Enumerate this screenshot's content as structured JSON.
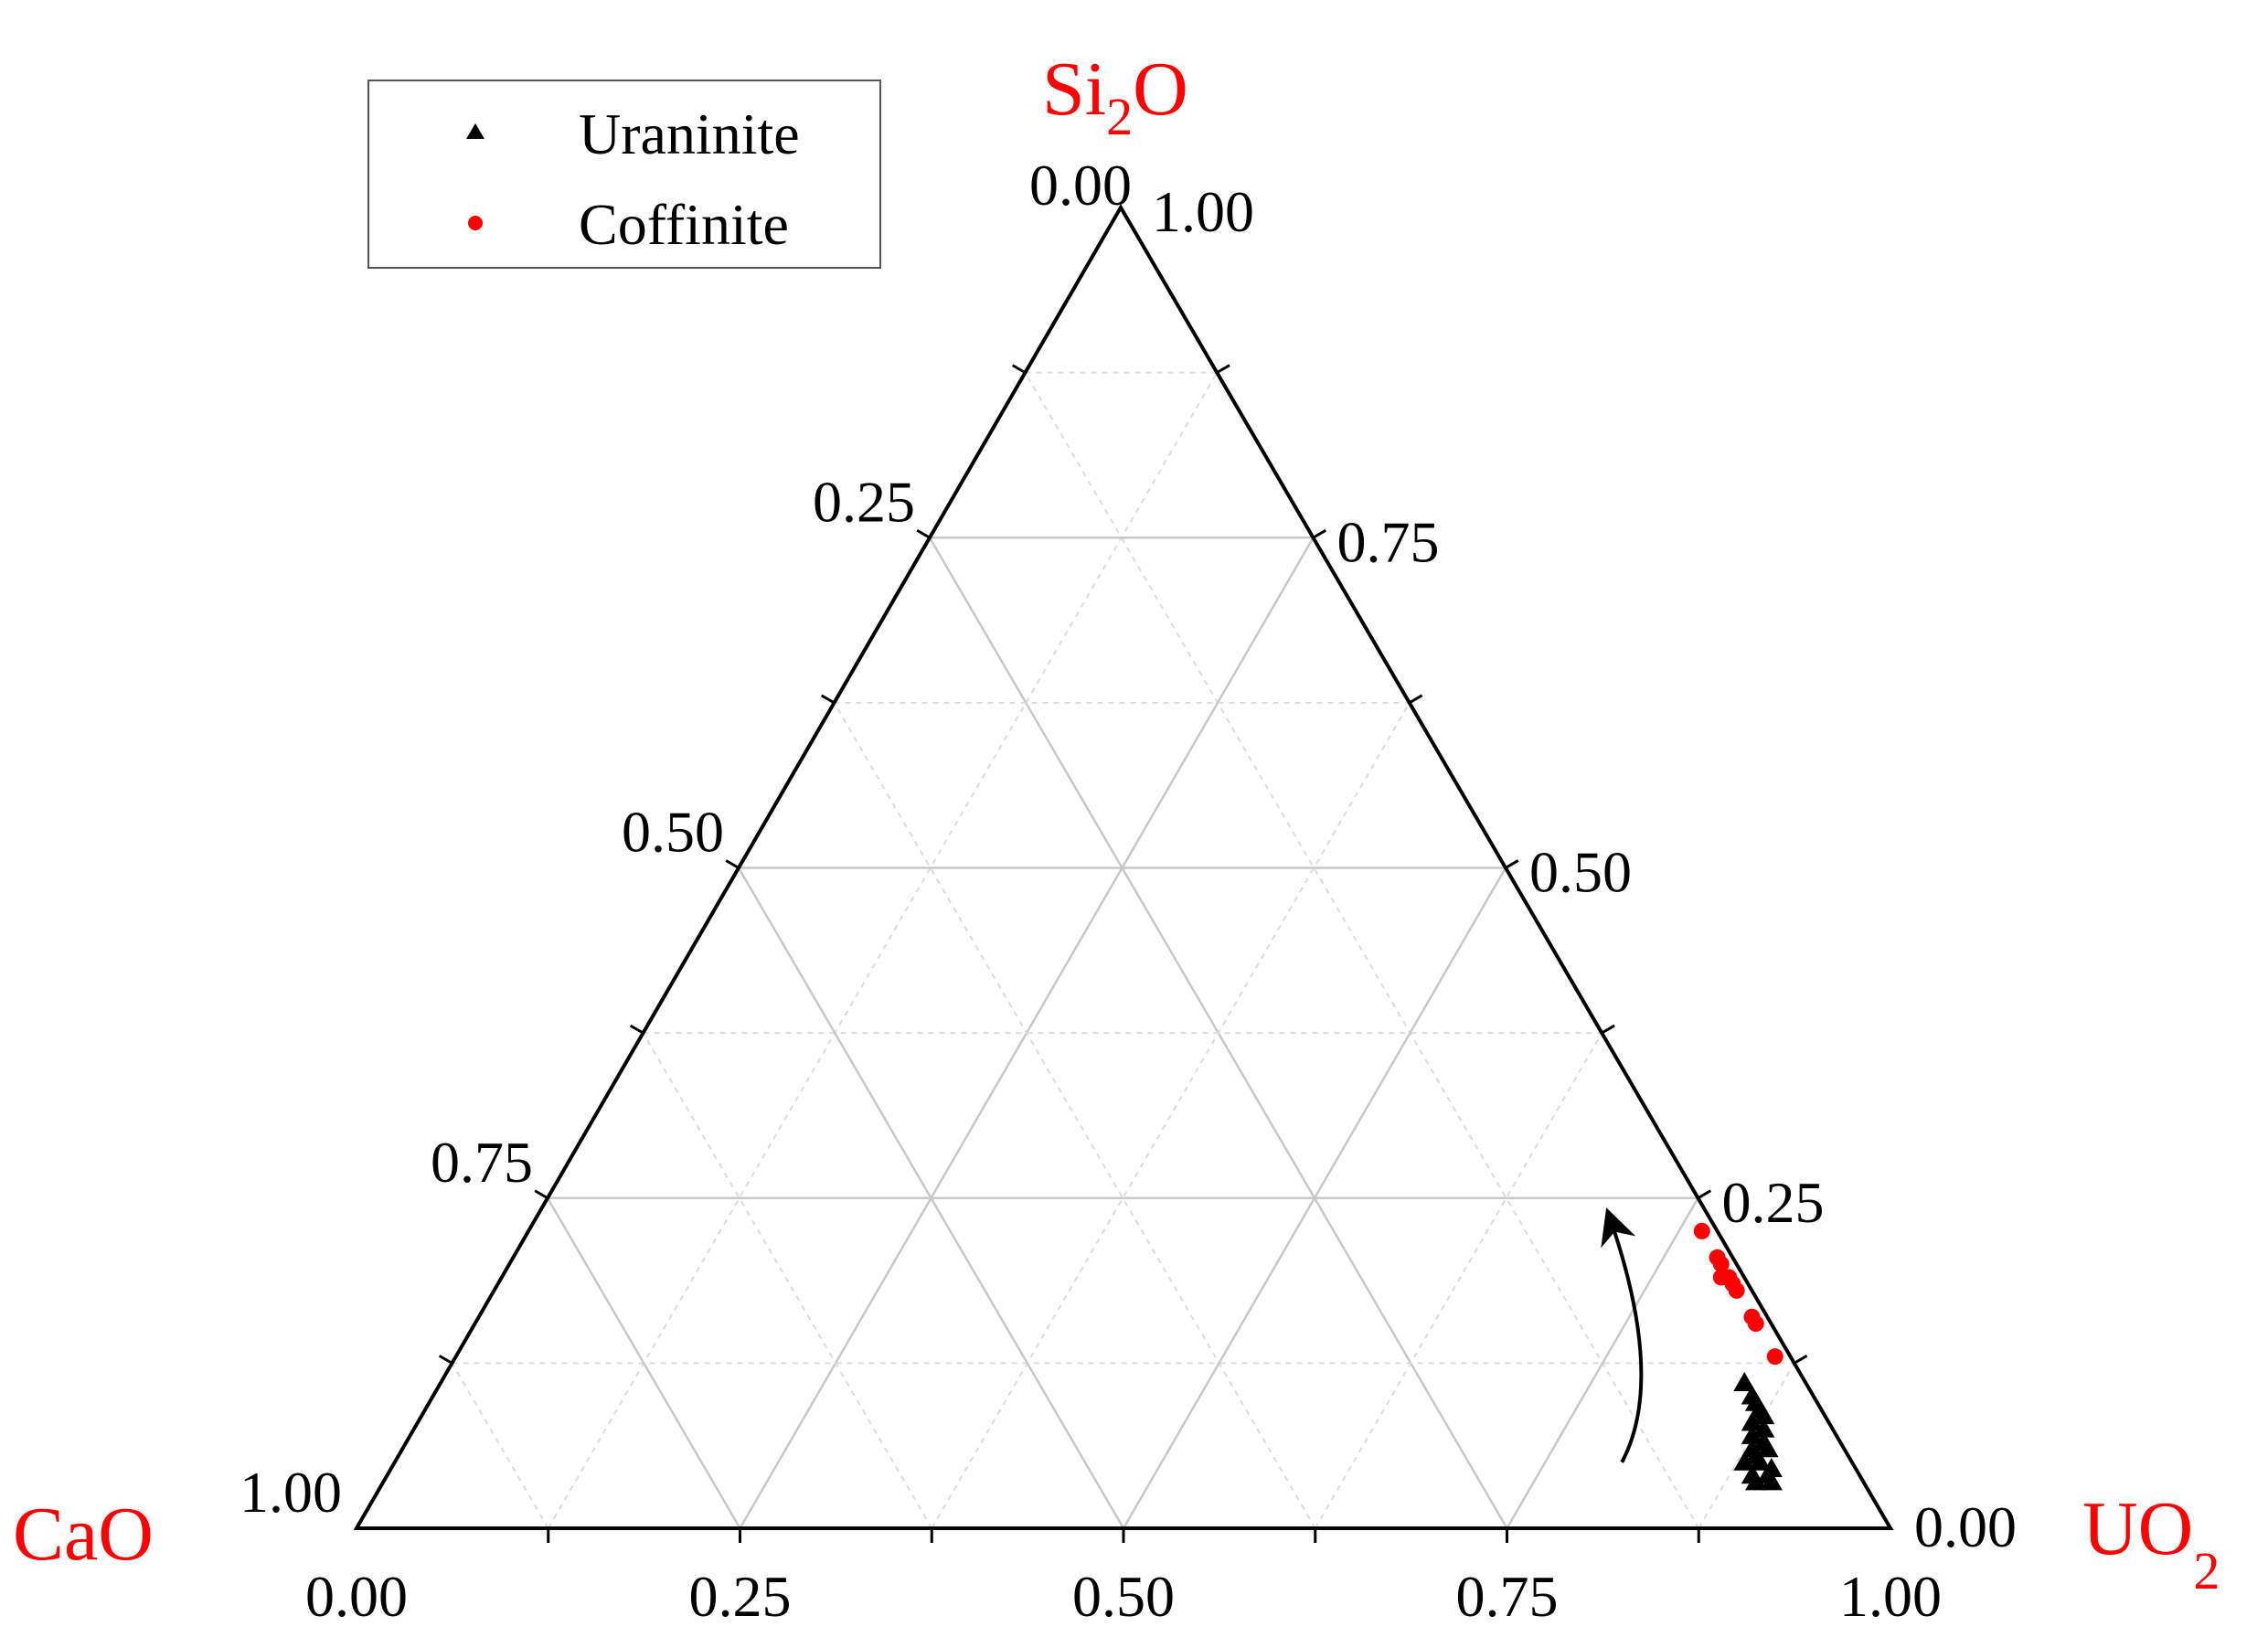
{
  "colors": {
    "axis": "#000000",
    "grid_major": "#c8c8c8",
    "grid_minor": "#dcdcdc",
    "component_label": "#ff0000",
    "uraninite": "#000000",
    "coffinite": "#ff0000"
  },
  "chart_data": {
    "type": "ternary-scatter",
    "components": {
      "top": {
        "text": "Si",
        "sub": "2",
        "after": "O"
      },
      "left": {
        "text": "CaO",
        "sub": "",
        "after": ""
      },
      "right": {
        "text": "UO",
        "sub": "2",
        "after": ""
      }
    },
    "ticks": {
      "bottom": [
        "0.00",
        "0.25",
        "0.50",
        "0.75",
        "1.00"
      ],
      "left": [
        "0.00",
        "0.25",
        "0.50",
        "0.75",
        "1.00"
      ],
      "right": [
        "0.00",
        "0.25",
        "0.50",
        "0.75",
        "1.00"
      ]
    },
    "grid": true,
    "legend_position": "top-left",
    "legend": [
      {
        "name": "Uraninite",
        "marker": "triangle"
      },
      {
        "name": "Coffinite",
        "marker": "circle"
      }
    ],
    "series": [
      {
        "name": "Uraninite",
        "marker": "triangle",
        "points": [
          {
            "si2o": 0.11,
            "uo2": 0.85,
            "cao": 0.04
          },
          {
            "si2o": 0.1,
            "uo2": 0.86,
            "cao": 0.04
          },
          {
            "si2o": 0.095,
            "uo2": 0.865,
            "cao": 0.04
          },
          {
            "si2o": 0.09,
            "uo2": 0.87,
            "cao": 0.04
          },
          {
            "si2o": 0.085,
            "uo2": 0.875,
            "cao": 0.04
          },
          {
            "si2o": 0.08,
            "uo2": 0.87,
            "cao": 0.05
          },
          {
            "si2o": 0.075,
            "uo2": 0.88,
            "cao": 0.045
          },
          {
            "si2o": 0.07,
            "uo2": 0.875,
            "cao": 0.055
          },
          {
            "si2o": 0.065,
            "uo2": 0.885,
            "cao": 0.05
          },
          {
            "si2o": 0.06,
            "uo2": 0.88,
            "cao": 0.06
          },
          {
            "si2o": 0.06,
            "uo2": 0.89,
            "cao": 0.05
          },
          {
            "si2o": 0.055,
            "uo2": 0.885,
            "cao": 0.06
          },
          {
            "si2o": 0.05,
            "uo2": 0.89,
            "cao": 0.06
          },
          {
            "si2o": 0.05,
            "uo2": 0.88,
            "cao": 0.07
          },
          {
            "si2o": 0.045,
            "uo2": 0.9,
            "cao": 0.055
          },
          {
            "si2o": 0.04,
            "uo2": 0.89,
            "cao": 0.07
          },
          {
            "si2o": 0.04,
            "uo2": 0.9,
            "cao": 0.06
          },
          {
            "si2o": 0.035,
            "uo2": 0.895,
            "cao": 0.07
          },
          {
            "si2o": 0.035,
            "uo2": 0.905,
            "cao": 0.06
          }
        ]
      },
      {
        "name": "Coffinite",
        "marker": "circle",
        "points": [
          {
            "si2o": 0.225,
            "uo2": 0.765,
            "cao": 0.01
          },
          {
            "si2o": 0.205,
            "uo2": 0.785,
            "cao": 0.01
          },
          {
            "si2o": 0.2,
            "uo2": 0.79,
            "cao": 0.01
          },
          {
            "si2o": 0.19,
            "uo2": 0.795,
            "cao": 0.015
          },
          {
            "si2o": 0.19,
            "uo2": 0.8,
            "cao": 0.01
          },
          {
            "si2o": 0.185,
            "uo2": 0.805,
            "cao": 0.01
          },
          {
            "si2o": 0.18,
            "uo2": 0.81,
            "cao": 0.01
          },
          {
            "si2o": 0.16,
            "uo2": 0.83,
            "cao": 0.01
          },
          {
            "si2o": 0.155,
            "uo2": 0.835,
            "cao": 0.01
          },
          {
            "si2o": 0.13,
            "uo2": 0.86,
            "cao": 0.01
          }
        ]
      }
    ],
    "annotations": [
      {
        "type": "arrow",
        "description": "curved arrow from Uraninite cluster toward increasing Si2O",
        "from": {
          "si2o": 0.05,
          "uo2": 0.8,
          "cao": 0.15
        },
        "via": {
          "si2o": 0.14,
          "uo2": 0.76,
          "cao": 0.1
        },
        "to": {
          "si2o": 0.235,
          "uo2": 0.7,
          "cao": 0.065
        }
      }
    ]
  }
}
